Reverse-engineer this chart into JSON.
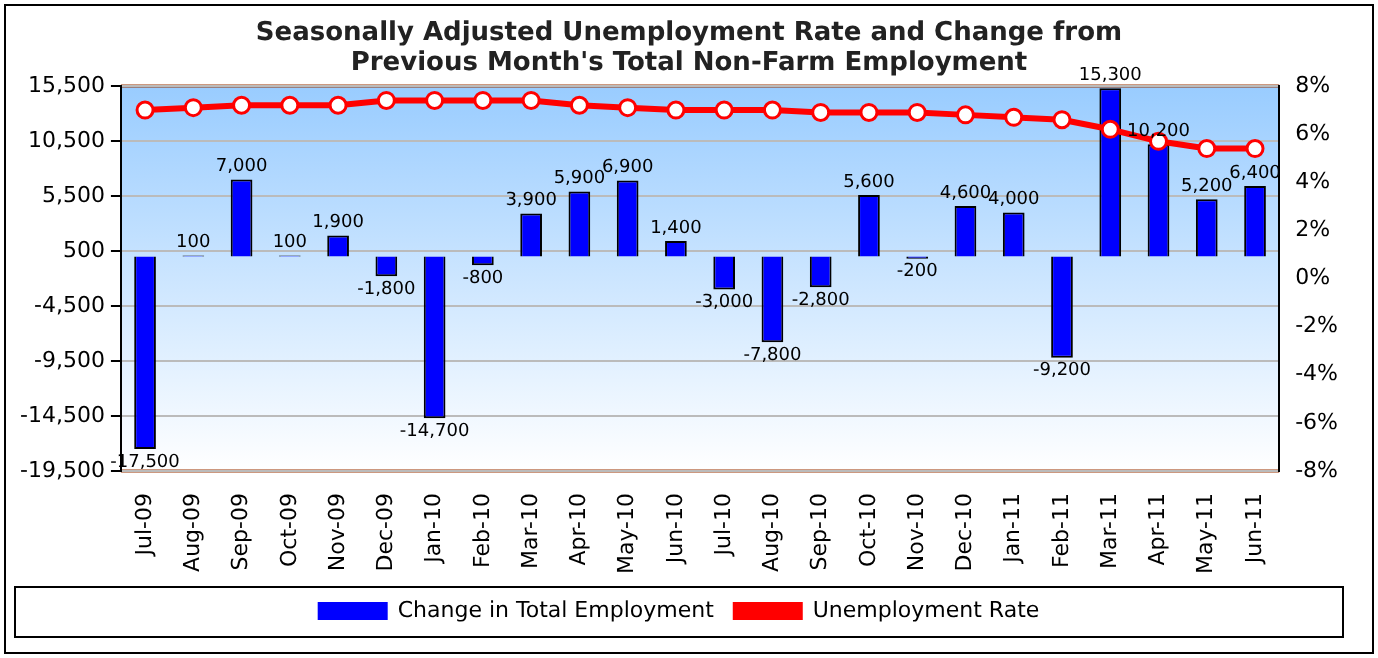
{
  "chart_data": {
    "type": "bar",
    "title": "Seasonally Adjusted Unemployment Rate and Change from Previous Month's Total Non-Farm Employment",
    "categories": [
      "Jul-09",
      "Aug-09",
      "Sep-09",
      "Oct-09",
      "Nov-09",
      "Dec-09",
      "Jan-10",
      "Feb-10",
      "Mar-10",
      "Apr-10",
      "May-10",
      "Jun-10",
      "Jul-10",
      "Aug-10",
      "Sep-10",
      "Oct-10",
      "Nov-10",
      "Dec-10",
      "Jan-11",
      "Feb-11",
      "Mar-11",
      "Apr-11",
      "May-11",
      "Jun-11"
    ],
    "series": [
      {
        "name": "Change in Total Employment",
        "color": "#0000ff",
        "values": [
          -17500,
          100,
          7000,
          100,
          1900,
          -1800,
          -14700,
          -800,
          3900,
          5900,
          6900,
          1400,
          -3000,
          -7800,
          -2800,
          5600,
          -200,
          4600,
          4000,
          -9200,
          15300,
          10200,
          5200,
          6400
        ],
        "value_labels": [
          "-17,500",
          "100",
          "7,000",
          "100",
          "1,900",
          "-1,800",
          "-14,700",
          "-800",
          "3,900",
          "5,900",
          "6,900",
          "1,400",
          "-3,000",
          "-7,800",
          "-2,800",
          "5,600",
          "-200",
          "4,600",
          "4,000",
          "-9,200",
          "15,300",
          "10,200",
          "5,200",
          "6,400"
        ]
      },
      {
        "name": "Unemployment Rate",
        "type": "line",
        "axis": "y2",
        "color": "#ff0000",
        "marker": "circle",
        "values": [
          7.0,
          7.1,
          7.2,
          7.2,
          7.2,
          7.4,
          7.4,
          7.4,
          7.4,
          7.2,
          7.1,
          7.0,
          7.0,
          7.0,
          6.9,
          6.9,
          6.9,
          6.8,
          6.7,
          6.6,
          6.2,
          5.7,
          5.4,
          5.4
        ]
      }
    ],
    "ylim": [
      -19500,
      15500
    ],
    "yticks": [
      {
        "value": -19500,
        "label": "-19,500"
      },
      {
        "value": -14500,
        "label": "-14,500"
      },
      {
        "value": -9500,
        "label": "-9,500"
      },
      {
        "value": -4500,
        "label": "-4,500"
      },
      {
        "value": 500,
        "label": "500"
      },
      {
        "value": 5500,
        "label": "5,500"
      },
      {
        "value": 10500,
        "label": "10,500"
      },
      {
        "value": 15500,
        "label": "15,500"
      }
    ],
    "y2lim": [
      -8,
      8
    ],
    "y2ticks": [
      {
        "value": -8,
        "label": "-8%"
      },
      {
        "value": -6,
        "label": "-6%"
      },
      {
        "value": -4,
        "label": "-4%"
      },
      {
        "value": -2,
        "label": "-2%"
      },
      {
        "value": 0,
        "label": "0%"
      },
      {
        "value": 2,
        "label": "2%"
      },
      {
        "value": 4,
        "label": "4%"
      },
      {
        "value": 6,
        "label": "6%"
      },
      {
        "value": 8,
        "label": "8%"
      }
    ],
    "grid": "y",
    "legend": "bottom"
  }
}
